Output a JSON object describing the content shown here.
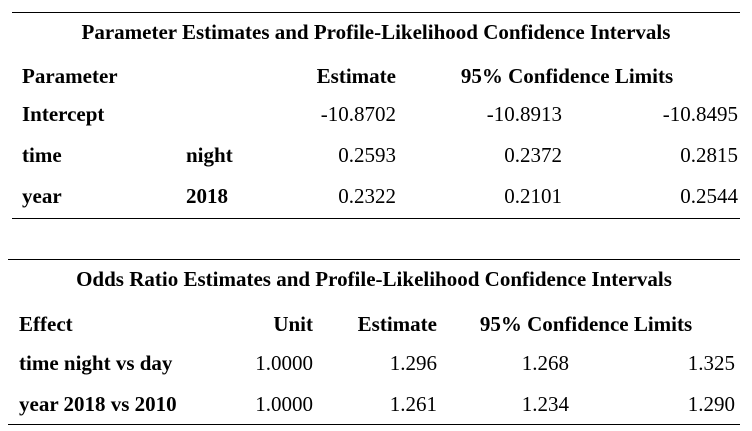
{
  "table1": {
    "title": "Parameter Estimates and Profile-Likelihood Confidence Intervals",
    "headers": {
      "parameter": "Parameter",
      "estimate": "Estimate",
      "ci": "95% Confidence Limits"
    },
    "rows": [
      {
        "param": "Intercept",
        "level": "",
        "estimate": "-10.8702",
        "lower": "-10.8913",
        "upper": "-10.8495"
      },
      {
        "param": "time",
        "level": "night",
        "estimate": "0.2593",
        "lower": "0.2372",
        "upper": "0.2815"
      },
      {
        "param": "year",
        "level": "2018",
        "estimate": "0.2322",
        "lower": "0.2101",
        "upper": "0.2544"
      }
    ]
  },
  "table2": {
    "title": "Odds Ratio Estimates and Profile-Likelihood Confidence Intervals",
    "headers": {
      "effect": "Effect",
      "unit": "Unit",
      "estimate": "Estimate",
      "ci": "95% Confidence Limits"
    },
    "rows": [
      {
        "effect": "time night vs day",
        "unit": "1.0000",
        "estimate": "1.296",
        "lower": "1.268",
        "upper": "1.325"
      },
      {
        "effect": "year 2018 vs 2010",
        "unit": "1.0000",
        "estimate": "1.261",
        "lower": "1.234",
        "upper": "1.290"
      }
    ]
  }
}
